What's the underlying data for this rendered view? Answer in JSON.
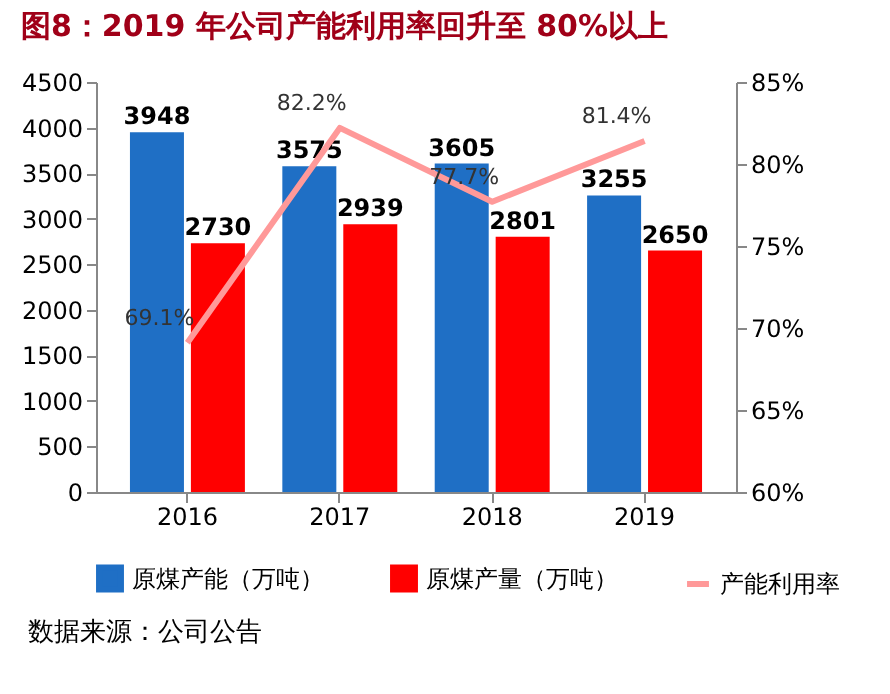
{
  "chart_data": {
    "type": "bar",
    "title": "图8：2019 年公司产能利用率回升至 80%以上",
    "categories": [
      "2016",
      "2017",
      "2018",
      "2019"
    ],
    "series": [
      {
        "name": "原煤产能（万吨）",
        "color": "#1f6fc5",
        "values": [
          3948,
          3575,
          3605,
          3255
        ],
        "value_labels": [
          "3948",
          "3575",
          "3605",
          "3255"
        ]
      },
      {
        "name": "原煤产量（万吨）",
        "color": "#ff0000",
        "values": [
          2730,
          2939,
          2801,
          2650
        ],
        "value_labels": [
          "2730",
          "2939",
          "2801",
          "2650"
        ]
      },
      {
        "name": "产能利用率",
        "type": "line",
        "axis": "y2",
        "color": "#ff9999",
        "values": [
          69.1,
          82.2,
          77.7,
          81.4
        ],
        "value_labels": [
          "69.1%",
          "82.2%",
          "77.7%",
          "81.4%"
        ]
      }
    ],
    "ylim": [
      0,
      4500
    ],
    "yticks": [
      0,
      500,
      1000,
      1500,
      2000,
      2500,
      3000,
      3500,
      4000,
      4500
    ],
    "y2lim": [
      60,
      85
    ],
    "y2ticks": [
      {
        "value": 60,
        "label": "60%"
      },
      {
        "value": 65,
        "label": "65%"
      },
      {
        "value": 70,
        "label": "70%"
      },
      {
        "value": 75,
        "label": "75%"
      },
      {
        "value": 80,
        "label": "80%"
      },
      {
        "value": 85,
        "label": "85%"
      }
    ],
    "legend": "bottom",
    "annotations": [
      "数据来源：公司公告"
    ]
  }
}
